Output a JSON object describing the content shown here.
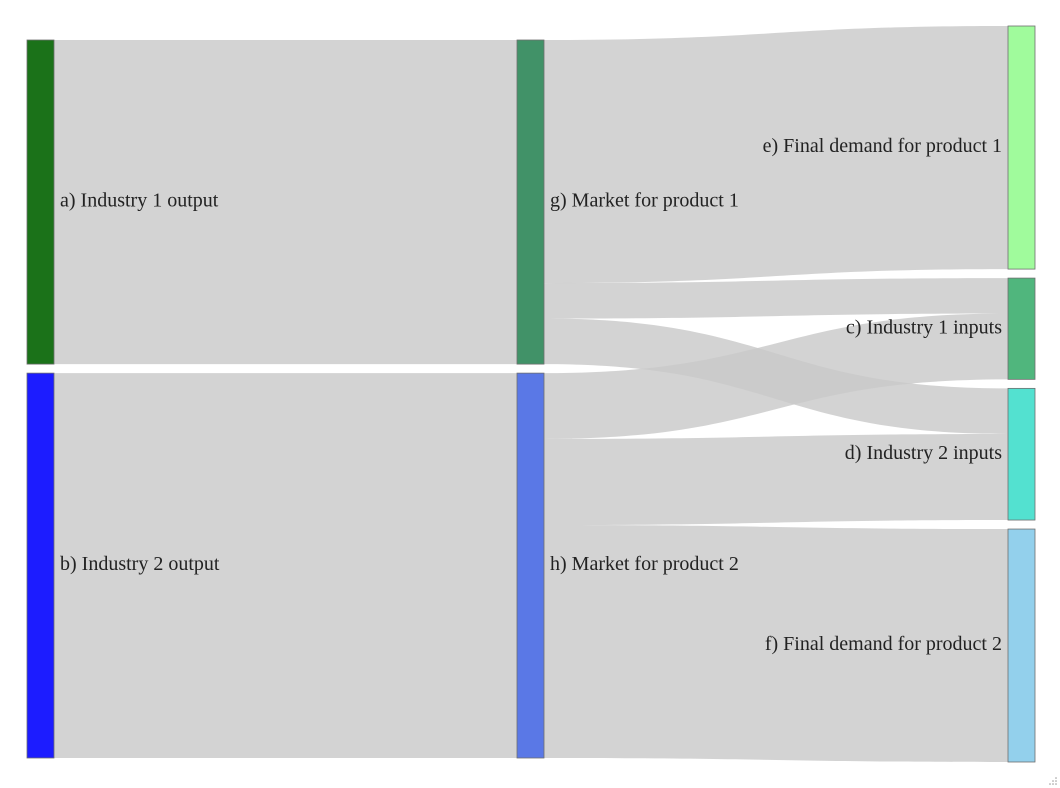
{
  "nodes": [
    {
      "id": "a",
      "label": "a) Industry 1 output",
      "color": "#1b7219"
    },
    {
      "id": "b",
      "label": "b) Industry 2 output",
      "color": "#1c1cff"
    },
    {
      "id": "g",
      "label": "g) Market for product 1",
      "color": "#419268"
    },
    {
      "id": "h",
      "label": "h) Market for product 2",
      "color": "#5a78e6"
    },
    {
      "id": "e",
      "label": "e) Final demand for product 1",
      "color": "#a0fb9c"
    },
    {
      "id": "c",
      "label": "c) Industry 1 inputs",
      "color": "#50b67d"
    },
    {
      "id": "d",
      "label": "d) Industry 2 inputs",
      "color": "#53e1d0"
    },
    {
      "id": "f",
      "label": "f) Final demand for product 2",
      "color": "#93d0ec"
    }
  ],
  "links": [
    {
      "source": "a",
      "target": "g",
      "value": 32
    },
    {
      "source": "b",
      "target": "h",
      "value": 38
    },
    {
      "source": "g",
      "target": "e",
      "value": 24
    },
    {
      "source": "g",
      "target": "c",
      "value": 3.5
    },
    {
      "source": "g",
      "target": "d",
      "value": 4.5
    },
    {
      "source": "h",
      "target": "c",
      "value": 6.5
    },
    {
      "source": "h",
      "target": "d",
      "value": 8.5
    },
    {
      "source": "h",
      "target": "f",
      "value": 23
    }
  ]
}
